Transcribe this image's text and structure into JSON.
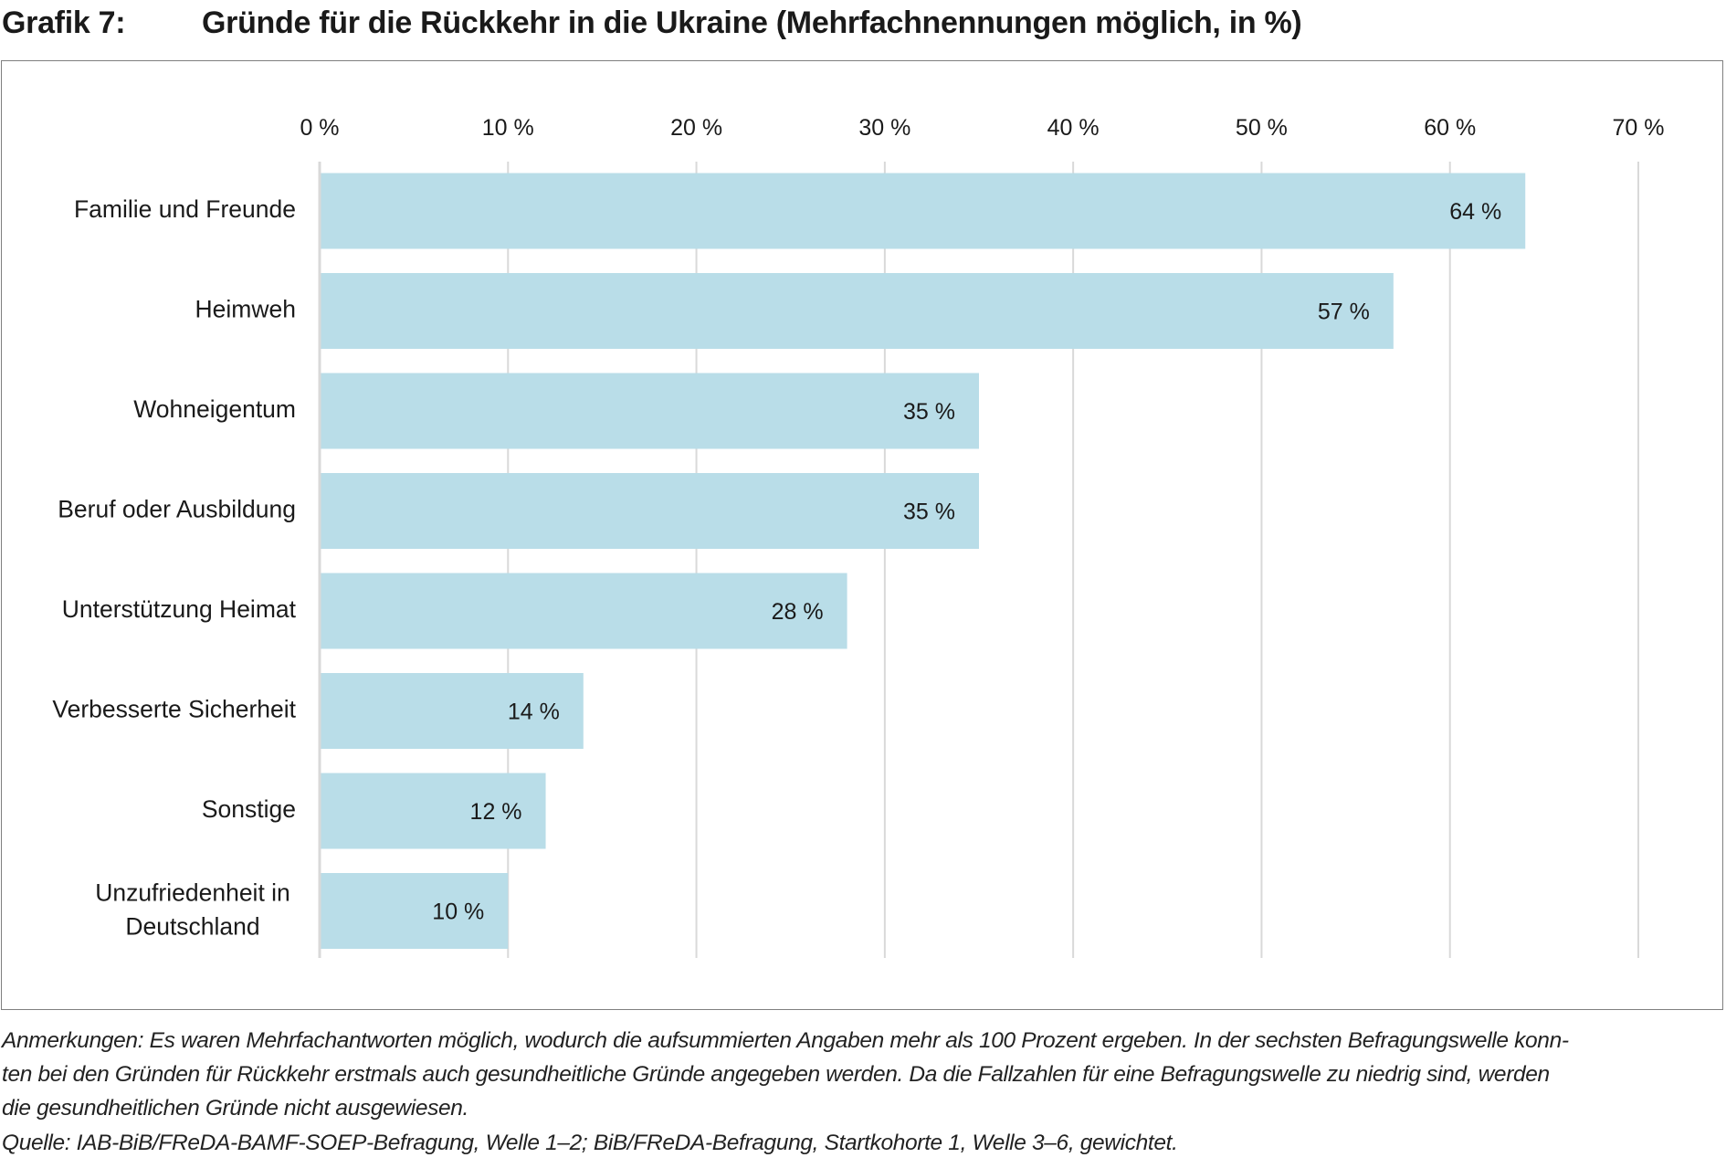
{
  "header": {
    "figure_number": "Grafik 7:",
    "title": "Gründe für die Rückkehr in die Ukraine (Mehrfachnennungen möglich,  in %)"
  },
  "colors": {
    "bar": "#b9dde8",
    "grid": "#d9d9d9",
    "frame": "#7f7f7f",
    "text": "#1a1a1a"
  },
  "chart_data": {
    "type": "bar",
    "orientation": "horizontal",
    "title": "Gründe für die Rückkehr in die Ukraine (Mehrfachnennungen möglich,  in %)",
    "categories": [
      [
        "Familie und Freunde"
      ],
      [
        "Heimweh"
      ],
      [
        "Wohneigentum"
      ],
      [
        "Beruf oder Ausbildung"
      ],
      [
        "Unterstützung Heimat"
      ],
      [
        "Verbesserte Sicherheit"
      ],
      [
        "Sonstige"
      ],
      [
        "Unzufriedenheit in",
        "Deutschland"
      ]
    ],
    "values": [
      64,
      57,
      35,
      35,
      28,
      14,
      12,
      10
    ],
    "data_labels": [
      "64 %",
      "57 %",
      "35 %",
      "35 %",
      "28 %",
      "14 %",
      "12 %",
      "10 %"
    ],
    "xlim": [
      0,
      70
    ],
    "x_ticks": [
      0,
      10,
      20,
      30,
      40,
      50,
      60,
      70
    ],
    "x_tick_labels": [
      "0 %",
      "10 %",
      "20 %",
      "30 %",
      "40 %",
      "50 %",
      "60 %",
      "70 %"
    ],
    "axis_position": "top",
    "grid": true,
    "legend": "none"
  },
  "footer": {
    "notes_lines": [
      "Anmerkungen: Es waren Mehrfachantworten möglich, wodurch die aufsummierten Angaben mehr als 100 Prozent ergeben. In der sechsten Befragungswelle konn-",
      "ten bei den Gründen für Rückkehr erstmals auch gesundheitliche Gründe angegeben werden. Da die Fallzahlen für eine Befragungswelle zu niedrig sind, werden",
      "die gesundheitlichen Gründe nicht ausgewiesen."
    ],
    "source": "Quelle: IAB-BiB/FReDA-BAMF-SOEP-Befragung, Welle 1–2; BiB/FReDA-Befragung, Startkohorte 1, Welle 3–6, gewichtet."
  }
}
